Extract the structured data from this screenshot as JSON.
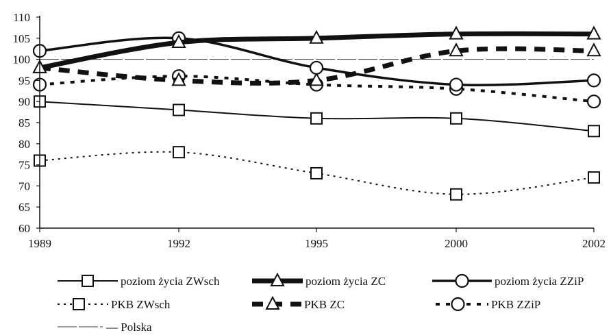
{
  "chart_data": {
    "type": "line",
    "title": "",
    "xlabel": "",
    "ylabel": "",
    "categories": [
      "1989",
      "1992",
      "1995",
      "2000",
      "2002"
    ],
    "ylim": [
      60,
      110
    ],
    "yticks": [
      60,
      65,
      70,
      75,
      80,
      85,
      90,
      95,
      100,
      105,
      110
    ],
    "grid": false,
    "reference_line": {
      "name": "Polska",
      "value": 100
    },
    "series": [
      {
        "name": "poziom życia ZWsch",
        "values": [
          90,
          88,
          86,
          86,
          83
        ],
        "marker": "square",
        "line": "thin-solid"
      },
      {
        "name": "poziom życia ZC",
        "values": [
          98,
          104,
          105,
          106,
          106
        ],
        "marker": "triangle",
        "line": "thick-solid"
      },
      {
        "name": "poziom życia ZZiP",
        "values": [
          102,
          105,
          98,
          94,
          95
        ],
        "marker": "circle",
        "line": "medium-solid"
      },
      {
        "name": "PKB ZWsch",
        "values": [
          76,
          78,
          73,
          68,
          72
        ],
        "marker": "square",
        "line": "dotted"
      },
      {
        "name": "PKB ZC",
        "values": [
          98,
          95,
          95,
          102,
          102
        ],
        "marker": "triangle",
        "line": "thick-dashed"
      },
      {
        "name": "PKB ZZiP",
        "values": [
          94,
          96,
          94,
          93,
          90
        ],
        "marker": "circle",
        "line": "medium-dashed"
      }
    ],
    "legend_position": "bottom",
    "colors": {
      "line": "#111111",
      "axis": "#111111",
      "reference": "#333333"
    }
  }
}
